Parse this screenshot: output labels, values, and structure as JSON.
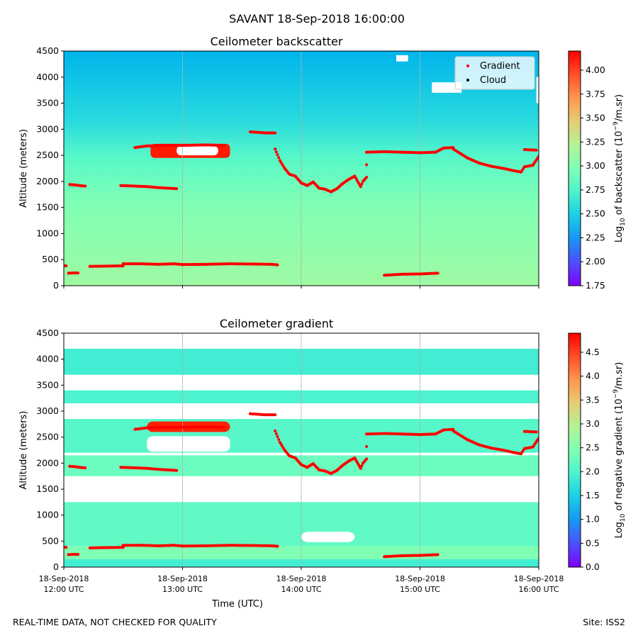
{
  "suptitle": "SAVANT 18-Sep-2018 16:00:00",
  "footer": {
    "left": "REAL-TIME DATA, NOT CHECKED FOR QUALITY",
    "right": "Site: ISS2"
  },
  "chart_data": [
    {
      "type": "heatmap",
      "title": "Ceilometer backscatter",
      "ylabel": "Altitude (meters)",
      "xlabel": "",
      "ylim": [
        0,
        4500
      ],
      "yticks": [
        0,
        500,
        1000,
        1500,
        2000,
        2500,
        3000,
        3500,
        4000,
        4500
      ],
      "xlim": [
        12,
        16
      ],
      "xticks": [
        12,
        13,
        14,
        15,
        16
      ],
      "xtick_labels": [],
      "grid": "vertical lines at hourly ticks",
      "colorbar": {
        "label_prefix": "Log",
        "label_sub": "10",
        "label_mid": " of backscatter (10",
        "label_sup": "−9",
        "label_suffix": "/m.sr)",
        "range": [
          1.75,
          4.2
        ],
        "ticks": [
          "1.75",
          "2.00",
          "2.25",
          "2.50",
          "2.75",
          "3.00",
          "3.25",
          "3.50",
          "3.75",
          "4.00"
        ],
        "colormap": "rainbow"
      },
      "legend": {
        "placement": "top-right",
        "entries": [
          {
            "label": "Gradient",
            "color": "#ff0000",
            "marker": "dot"
          },
          {
            "label": "Cloud",
            "color": "#000000",
            "marker": "dot"
          }
        ]
      }
    },
    {
      "type": "heatmap",
      "title": "Ceilometer gradient",
      "ylabel": "Altitude (meters)",
      "xlabel": "Time (UTC)",
      "ylim": [
        0,
        4500
      ],
      "yticks": [
        0,
        500,
        1000,
        1500,
        2000,
        2500,
        3000,
        3500,
        4000,
        4500
      ],
      "xlim": [
        12,
        16
      ],
      "xticks": [
        12,
        13,
        14,
        15,
        16
      ],
      "xtick_labels": [
        [
          "18-Sep-2018",
          "12:00 UTC"
        ],
        [
          "18-Sep-2018",
          "13:00 UTC"
        ],
        [
          "18-Sep-2018",
          "14:00 UTC"
        ],
        [
          "18-Sep-2018",
          "15:00 UTC"
        ],
        [
          "18-Sep-2018",
          "16:00 UTC"
        ]
      ],
      "grid": "vertical lines at hourly ticks",
      "colorbar": {
        "label_prefix": "Log",
        "label_sub": "10",
        "label_mid": " of negative gradient (10",
        "label_sup": "−9",
        "label_suffix": "/m.sr)",
        "range": [
          0,
          4.9
        ],
        "ticks": [
          "0.0",
          "0.5",
          "1.0",
          "1.5",
          "2.0",
          "2.5",
          "3.0",
          "3.5",
          "4.0",
          "4.5"
        ],
        "colormap": "rainbow"
      }
    }
  ],
  "gradient_series": {
    "name": "Gradient",
    "color": "#ff0000",
    "segments": [
      [
        [
          12.0,
          380
        ],
        [
          12.02,
          380
        ]
      ],
      [
        [
          12.04,
          240
        ],
        [
          12.08,
          245
        ],
        [
          12.12,
          245
        ]
      ],
      [
        [
          12.05,
          1940
        ],
        [
          12.1,
          1930
        ],
        [
          12.15,
          1915
        ],
        [
          12.18,
          1910
        ]
      ],
      [
        [
          12.22,
          370
        ],
        [
          12.35,
          375
        ],
        [
          12.5,
          380
        ]
      ],
      [
        [
          12.5,
          420
        ],
        [
          12.65,
          420
        ],
        [
          12.8,
          410
        ],
        [
          12.93,
          420
        ],
        [
          13.0,
          405
        ],
        [
          13.2,
          410
        ],
        [
          13.4,
          420
        ],
        [
          13.6,
          415
        ],
        [
          13.75,
          410
        ],
        [
          13.8,
          400
        ]
      ],
      [
        [
          12.48,
          1920
        ],
        [
          12.6,
          1910
        ],
        [
          12.7,
          1900
        ],
        [
          12.8,
          1880
        ],
        [
          12.95,
          1860
        ]
      ],
      [
        [
          12.6,
          2650
        ],
        [
          12.7,
          2680
        ],
        [
          12.85,
          2690
        ],
        [
          13.0,
          2690
        ],
        [
          13.2,
          2700
        ],
        [
          13.35,
          2690
        ]
      ],
      [
        [
          13.57,
          2950
        ],
        [
          13.7,
          2930
        ],
        [
          13.78,
          2930
        ]
      ],
      [
        [
          13.78,
          2620
        ],
        [
          13.82,
          2400
        ],
        [
          13.86,
          2250
        ],
        [
          13.9,
          2140
        ],
        [
          13.95,
          2100
        ],
        [
          14.0,
          1970
        ],
        [
          14.05,
          1920
        ],
        [
          14.1,
          1990
        ],
        [
          14.15,
          1870
        ],
        [
          14.2,
          1850
        ],
        [
          14.25,
          1800
        ],
        [
          14.3,
          1860
        ],
        [
          14.35,
          1960
        ],
        [
          14.4,
          2040
        ],
        [
          14.45,
          2100
        ],
        [
          14.5,
          1900
        ],
        [
          14.52,
          2000
        ],
        [
          14.55,
          2080
        ]
      ],
      [
        [
          14.55,
          2320
        ]
      ],
      [
        [
          14.55,
          2560
        ],
        [
          14.7,
          2570
        ],
        [
          14.85,
          2560
        ],
        [
          15.0,
          2550
        ],
        [
          15.13,
          2560
        ],
        [
          15.2,
          2640
        ],
        [
          15.28,
          2650
        ]
      ],
      [
        [
          14.7,
          200
        ],
        [
          14.85,
          220
        ],
        [
          15.0,
          225
        ],
        [
          15.15,
          240
        ]
      ],
      [
        [
          15.28,
          2620
        ],
        [
          15.4,
          2450
        ],
        [
          15.5,
          2350
        ],
        [
          15.6,
          2290
        ],
        [
          15.7,
          2250
        ],
        [
          15.8,
          2200
        ],
        [
          15.85,
          2180
        ],
        [
          15.88,
          2280
        ],
        [
          15.95,
          2310
        ],
        [
          16.0,
          2480
        ]
      ],
      [
        [
          15.88,
          2610
        ],
        [
          15.98,
          2600
        ]
      ]
    ]
  }
}
